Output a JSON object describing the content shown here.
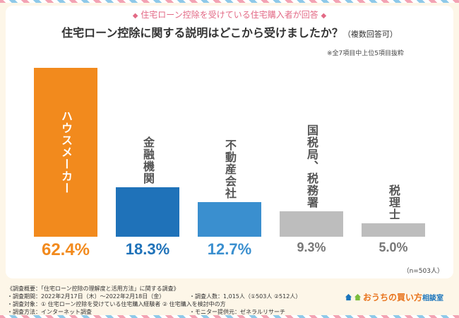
{
  "header": {
    "subtitle_text": "住宅ローン控除を受けている住宅購入者が回答",
    "diamond": "◆",
    "title_main": "住宅ローン控除に関する説明はどこから受けましたか？",
    "title_suffix": "（複数回答可）",
    "note": "※全7項目中上位5項目抜粋"
  },
  "chart_data": {
    "type": "bar",
    "categories": [
      "ハウスメーカー",
      "金融機関",
      "不動産会社",
      "国税局、税務署",
      "税理士"
    ],
    "values": [
      62.4,
      18.3,
      12.7,
      9.3,
      5.0
    ],
    "value_labels": [
      "62.4%",
      "18.3%",
      "12.7%",
      "9.3%",
      "5.0%"
    ],
    "unit": "%",
    "sample": "（n=503人）",
    "ylim": [
      0,
      62.4
    ],
    "colors": [
      "#f28a1d",
      "#1f72b9",
      "#3a8fcf",
      "#bdbdbd",
      "#bdbdbd"
    ],
    "label_colors": [
      "#ffffff",
      "#ffffff",
      "#ffffff",
      "#555555",
      "#555555"
    ],
    "pct_colors": [
      "#f28a1d",
      "#1f72b9",
      "#3a8fcf",
      "#777777",
      "#777777"
    ],
    "grid": false
  },
  "footer": {
    "lines_left": [
      "《調査概要：「住宅ローン控除の理解度と活用方法」に関する調査》",
      "・調査期間：2022年2月17日（木）～2022年2月18日（金）",
      "・調査対象：① 住宅ローン控除を受けている住宅購入経験者 ② 住宅購入を検討中の方",
      "・調査方法：インターネット調査"
    ],
    "lines_right": [
      "・調査人数：1,015人（①503人 ②512人）",
      "・モニター提供元：ゼネラルリサーチ"
    ],
    "logo_main": "おうちの買い方",
    "logo_sub": "相談室"
  }
}
